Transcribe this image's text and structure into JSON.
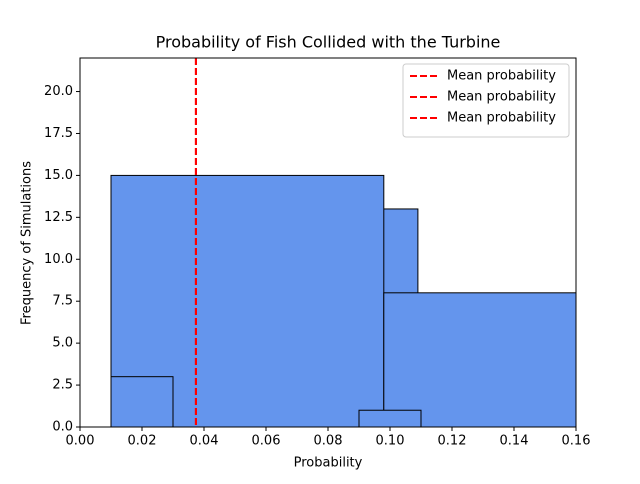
{
  "chart_data": {
    "type": "histogram",
    "title": "Probability of Fish Collided with the Turbine",
    "x_label": "Probability",
    "y_label": "Frequency of Simulations",
    "xlim": [
      0,
      0.16
    ],
    "ylim": [
      0,
      22
    ],
    "xticks": [
      {
        "value": 0,
        "label": "0.00"
      },
      0.02,
      0.04,
      0.06,
      0.08,
      {
        "value": 0.1,
        "label": "0.10"
      },
      0.12,
      0.14,
      0.16
    ],
    "yticks": [
      {
        "value": 0,
        "label": "0.0"
      },
      2.5,
      {
        "value": 5,
        "label": "5.0"
      },
      7.5,
      {
        "value": 10,
        "label": "10.0"
      },
      12.5,
      {
        "value": 15,
        "label": "15.0"
      },
      17.5,
      {
        "value": 20,
        "label": "20.0"
      }
    ],
    "bar_color": "#6495ed",
    "edge_color": "#000000",
    "series": [
      {
        "bins": [
          0.01,
          0.109
        ],
        "counts": [
          13
        ]
      },
      {
        "bins": [
          0.01,
          0.098
        ],
        "counts": [
          15
        ]
      },
      {
        "bins": [
          0.098,
          0.16
        ],
        "counts": [
          8
        ]
      },
      {
        "bins": [
          0.01,
          0.03
        ],
        "counts": [
          3
        ]
      },
      {
        "bins": [
          0.09,
          0.11
        ],
        "counts": [
          1
        ]
      }
    ],
    "vlines": [
      {
        "name": "Mean probability",
        "value": 0.0374,
        "color": "#ff0000"
      },
      {
        "name": "Mean probability",
        "value": 0.0374,
        "color": "#ff0000"
      },
      {
        "name": "Mean probability",
        "value": 0.0374,
        "color": "#ff0000"
      }
    ],
    "legend": "upper right"
  }
}
